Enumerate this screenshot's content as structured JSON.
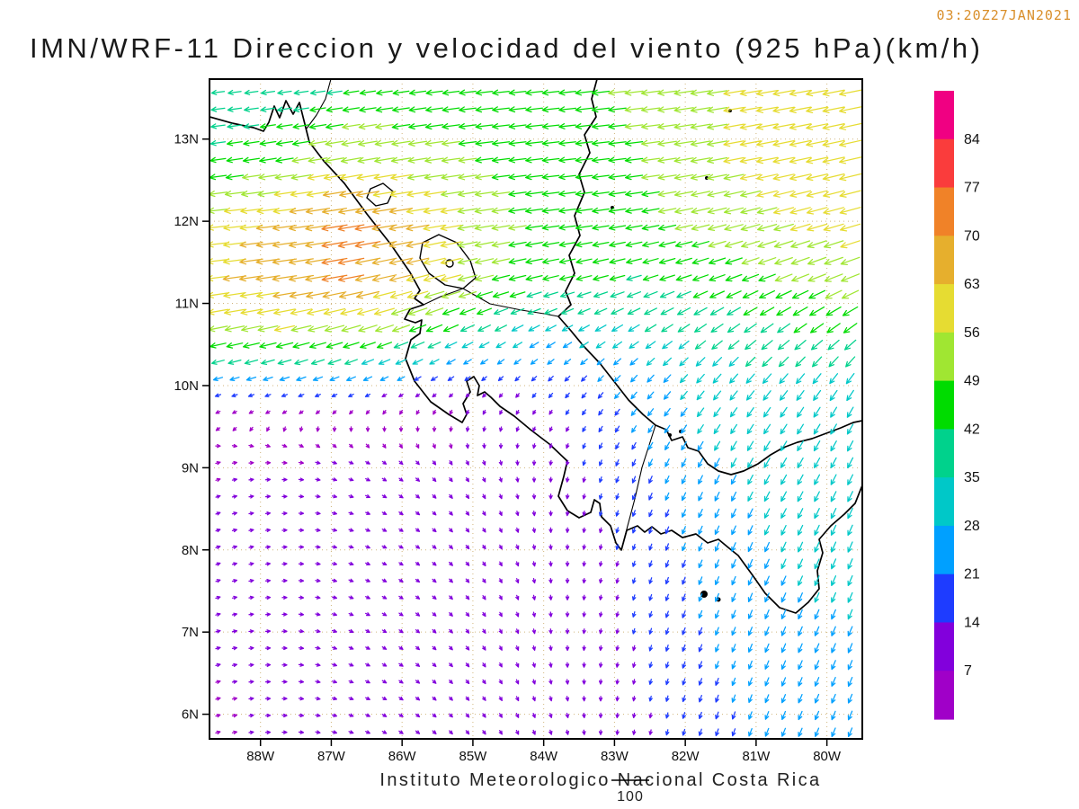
{
  "header": {
    "timestamp": "03:20Z27JAN2021",
    "title": "IMN/WRF-11 Direccion y velocidad del viento (925 hPa)(km/h)"
  },
  "axes": {
    "lat_ticks": [
      "13N",
      "12N",
      "11N",
      "10N",
      "9N",
      "8N",
      "7N",
      "6N"
    ],
    "lon_ticks": [
      "88W",
      "87W",
      "86W",
      "85W",
      "84W",
      "83W",
      "82W",
      "81W",
      "80W"
    ]
  },
  "colorbar": {
    "labels": [
      "84",
      "77",
      "70",
      "63",
      "56",
      "49",
      "42",
      "35",
      "28",
      "21",
      "14",
      "7"
    ]
  },
  "footer": {
    "institute": "Instituto Meteorologico Nacional Costa Rica",
    "reference_label": "100"
  },
  "chart_data": {
    "type": "vector_field",
    "title": "IMN/WRF-11 Direccion y velocidad del viento (925 hPa)(km/h)",
    "valid_time": "03:20Z27JAN2021",
    "units": "km/h",
    "pressure_level_hpa": 925,
    "lon_range": [
      -88.72,
      -79.5
    ],
    "lat_range": [
      5.7,
      13.73
    ],
    "reference_vector": 100,
    "speed_levels": [
      7,
      14,
      21,
      28,
      35,
      42,
      49,
      56,
      63,
      70,
      77,
      84
    ],
    "speed_colors": [
      "#a000c8",
      "#8200dc",
      "#1e3cff",
      "#00a0ff",
      "#00c8c8",
      "#00d28c",
      "#00dc00",
      "#a0e632",
      "#e6dc32",
      "#e6af2d",
      "#f08228",
      "#fa3c3c",
      "#f00082"
    ],
    "grid": {
      "lats": [
        6,
        7,
        8,
        9,
        9.7,
        10.2,
        10.7,
        11.3,
        12,
        12.7,
        13.7
      ],
      "lons": [
        -88.7,
        -87.7,
        -86.7,
        -85.7,
        -84.7,
        -83.7,
        -82.7,
        -81.7,
        -80.7,
        -79.5
      ],
      "u": [
        [
          6,
          8,
          8,
          6,
          4,
          2,
          -2,
          -6,
          -9,
          -10
        ],
        [
          7,
          9,
          9,
          7,
          4,
          0,
          -4,
          -8,
          -10,
          -11
        ],
        [
          8,
          10,
          10,
          8,
          5,
          0,
          -5,
          -9,
          -12,
          -12
        ],
        [
          6,
          8,
          8,
          6,
          3,
          -2,
          -8,
          -12,
          -15,
          -14
        ],
        [
          -6,
          -5,
          -4,
          -3,
          -4,
          -8,
          -14,
          -18,
          -18,
          -16
        ],
        [
          -30,
          -32,
          -30,
          -22,
          -15,
          -15,
          -18,
          -22,
          -24,
          -22
        ],
        [
          -52,
          -55,
          -52,
          -45,
          -32,
          -28,
          -30,
          -32,
          -34,
          -36
        ],
        [
          -62,
          -66,
          -70,
          -60,
          -48,
          -42,
          -40,
          -42,
          -46,
          -50
        ],
        [
          -58,
          -64,
          -72,
          -62,
          -50,
          -46,
          -46,
          -50,
          -54,
          -56
        ],
        [
          -42,
          -48,
          -56,
          -52,
          -48,
          -46,
          -48,
          -54,
          -58,
          -60
        ],
        [
          -34,
          -36,
          -40,
          -44,
          -46,
          -46,
          -50,
          -54,
          -58,
          -60
        ]
      ],
      "v": [
        [
          2,
          0,
          -3,
          -5,
          -6,
          -8,
          -12,
          -18,
          -22,
          -24
        ],
        [
          2,
          0,
          -4,
          -6,
          -7,
          -9,
          -14,
          -20,
          -24,
          -26
        ],
        [
          3,
          1,
          -3,
          -6,
          -8,
          -10,
          -15,
          -22,
          -26,
          -28
        ],
        [
          2,
          0,
          -3,
          -6,
          -8,
          -12,
          -18,
          -24,
          -26,
          -28
        ],
        [
          -3,
          -3,
          -4,
          -5,
          -8,
          -12,
          -18,
          -24,
          -26,
          -28
        ],
        [
          -8,
          -10,
          -12,
          -12,
          -12,
          -14,
          -18,
          -24,
          -26,
          -28
        ],
        [
          -10,
          -12,
          -15,
          -18,
          -16,
          -15,
          -18,
          -22,
          -24,
          -26
        ],
        [
          -8,
          -10,
          -14,
          -16,
          -12,
          -10,
          -12,
          -15,
          -18,
          -20
        ],
        [
          -6,
          -8,
          -12,
          -10,
          -8,
          -6,
          -8,
          -12,
          -15,
          -16
        ],
        [
          -6,
          -8,
          -10,
          -8,
          -6,
          -5,
          -6,
          -10,
          -12,
          -14
        ],
        [
          -4,
          -5,
          -6,
          -6,
          -5,
          -5,
          -6,
          -8,
          -10,
          -12
        ]
      ]
    }
  }
}
